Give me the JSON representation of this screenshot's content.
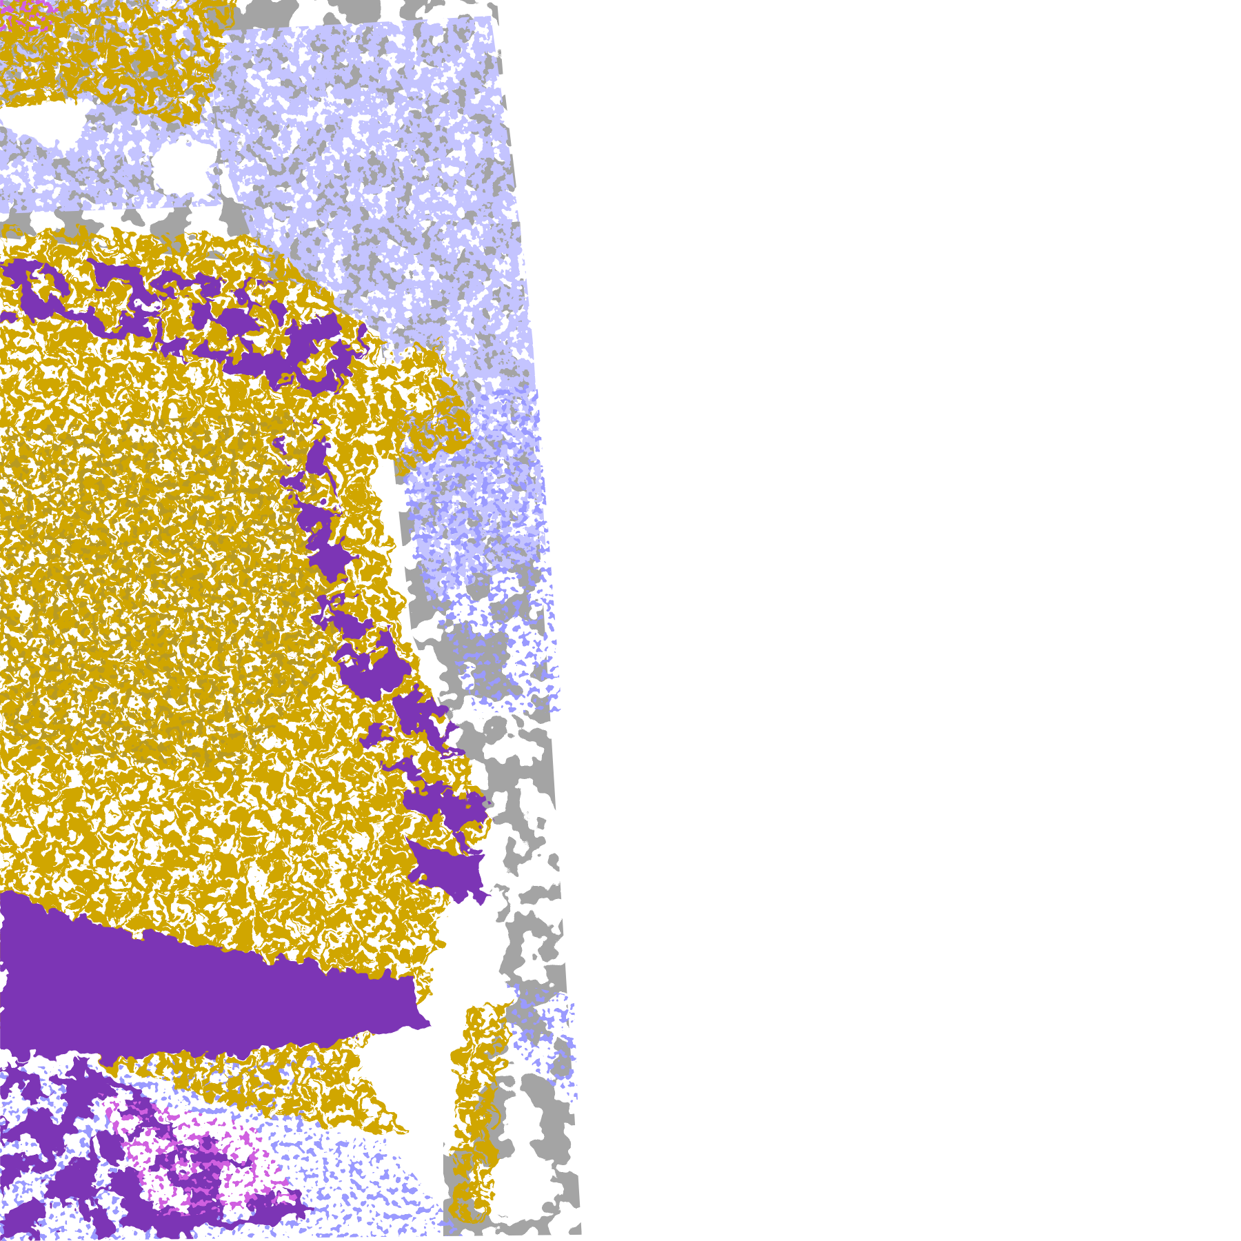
{
  "image": {
    "kind": "satellite swath cloud classification",
    "background": "#ffffff"
  },
  "classes": [
    {
      "id": "gold",
      "color": "#d0a600"
    },
    {
      "id": "dark-gold",
      "color": "#b89a20"
    },
    {
      "id": "purple",
      "color": "#7b35b5"
    },
    {
      "id": "magenta",
      "color": "#d060e0"
    },
    {
      "id": "periwinkle",
      "color": "#9a9aff"
    },
    {
      "id": "lavender",
      "color": "#c4c4ff"
    },
    {
      "id": "gray",
      "color": "#a4a4a4"
    }
  ]
}
